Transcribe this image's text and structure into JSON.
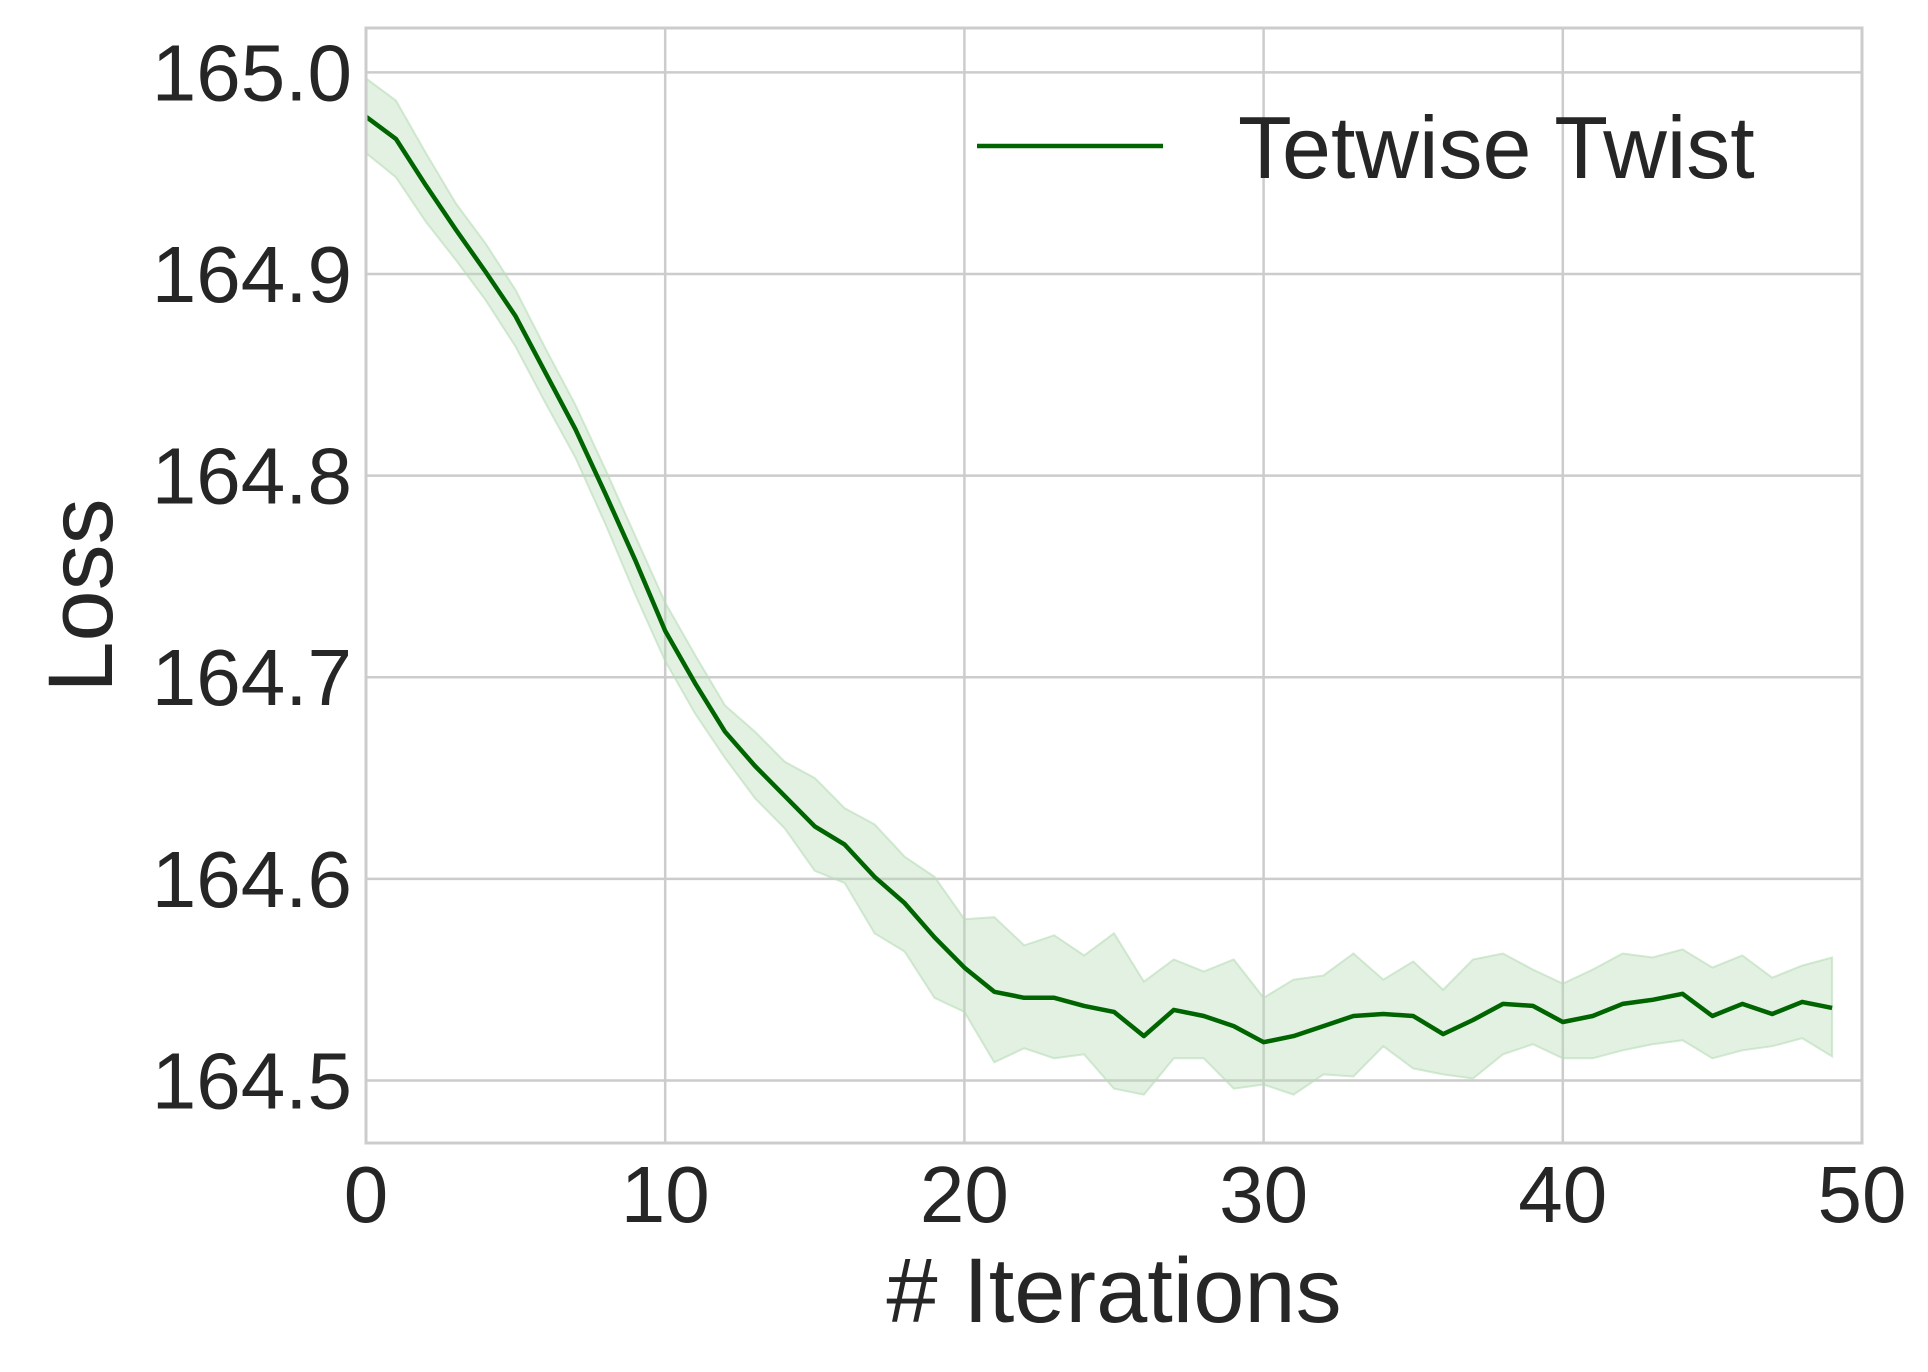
{
  "chart_data": {
    "type": "line",
    "title": "",
    "xlabel": "# Iterations",
    "ylabel": "Loss",
    "xlim": [
      0,
      50
    ],
    "ylim": [
      164.469,
      165.022
    ],
    "xticks": [
      "0",
      "10",
      "20",
      "30",
      "40",
      "50"
    ],
    "xtick_values": [
      0,
      10,
      20,
      30,
      40,
      50
    ],
    "yticks": [
      "164.5",
      "164.6",
      "164.7",
      "164.8",
      "164.9",
      "165.0"
    ],
    "ytick_values": [
      164.5,
      164.6,
      164.7,
      164.8,
      164.9,
      165.0
    ],
    "grid": true,
    "legend_position": "upper right",
    "series": [
      {
        "name": "Tetwise Twist",
        "color": "#006400",
        "band_color": "#b7dcb7",
        "x": [
          0,
          1,
          2,
          3,
          4,
          5,
          6,
          7,
          8,
          9,
          10,
          11,
          12,
          13,
          14,
          15,
          16,
          17,
          18,
          19,
          20,
          21,
          22,
          23,
          24,
          25,
          26,
          27,
          28,
          29,
          30,
          31,
          32,
          33,
          34,
          35,
          36,
          37,
          38,
          39,
          40,
          41,
          42,
          43,
          44,
          45,
          46,
          47,
          48,
          49
        ],
        "y": [
          164.978,
          164.967,
          164.944,
          164.922,
          164.901,
          164.879,
          164.851,
          164.823,
          164.791,
          164.758,
          164.723,
          164.697,
          164.673,
          164.656,
          164.641,
          164.626,
          164.617,
          164.601,
          164.588,
          164.571,
          164.556,
          164.544,
          164.541,
          164.541,
          164.537,
          164.534,
          164.522,
          164.535,
          164.532,
          164.527,
          164.519,
          164.522,
          164.527,
          164.532,
          164.533,
          164.532,
          164.523,
          164.53,
          164.538,
          164.537,
          164.529,
          164.532,
          164.538,
          164.54,
          164.543,
          164.532,
          164.538,
          164.533,
          164.539,
          164.536
        ],
        "upper": [
          164.997,
          164.986,
          164.96,
          164.935,
          164.915,
          164.892,
          164.863,
          164.835,
          164.803,
          164.77,
          164.737,
          164.711,
          164.686,
          164.673,
          164.658,
          164.65,
          164.635,
          164.627,
          164.611,
          164.601,
          164.58,
          164.581,
          164.567,
          164.572,
          164.562,
          164.573,
          164.549,
          164.56,
          164.554,
          164.56,
          164.541,
          164.55,
          164.552,
          164.563,
          164.55,
          164.559,
          164.545,
          164.56,
          164.563,
          164.555,
          164.548,
          164.555,
          164.563,
          164.561,
          164.565,
          164.556,
          164.562,
          164.551,
          164.557,
          164.561
        ],
        "lower": [
          164.96,
          164.948,
          164.926,
          164.907,
          164.887,
          164.864,
          164.836,
          164.809,
          164.776,
          164.741,
          164.708,
          164.682,
          164.66,
          164.64,
          164.625,
          164.604,
          164.598,
          164.573,
          164.564,
          164.541,
          164.534,
          164.509,
          164.516,
          164.511,
          164.513,
          164.496,
          164.493,
          164.511,
          164.511,
          164.496,
          164.498,
          164.493,
          164.503,
          164.502,
          164.517,
          164.506,
          164.503,
          164.501,
          164.513,
          164.518,
          164.511,
          164.511,
          164.515,
          164.518,
          164.52,
          164.511,
          164.515,
          164.517,
          164.521,
          164.512
        ]
      }
    ]
  }
}
